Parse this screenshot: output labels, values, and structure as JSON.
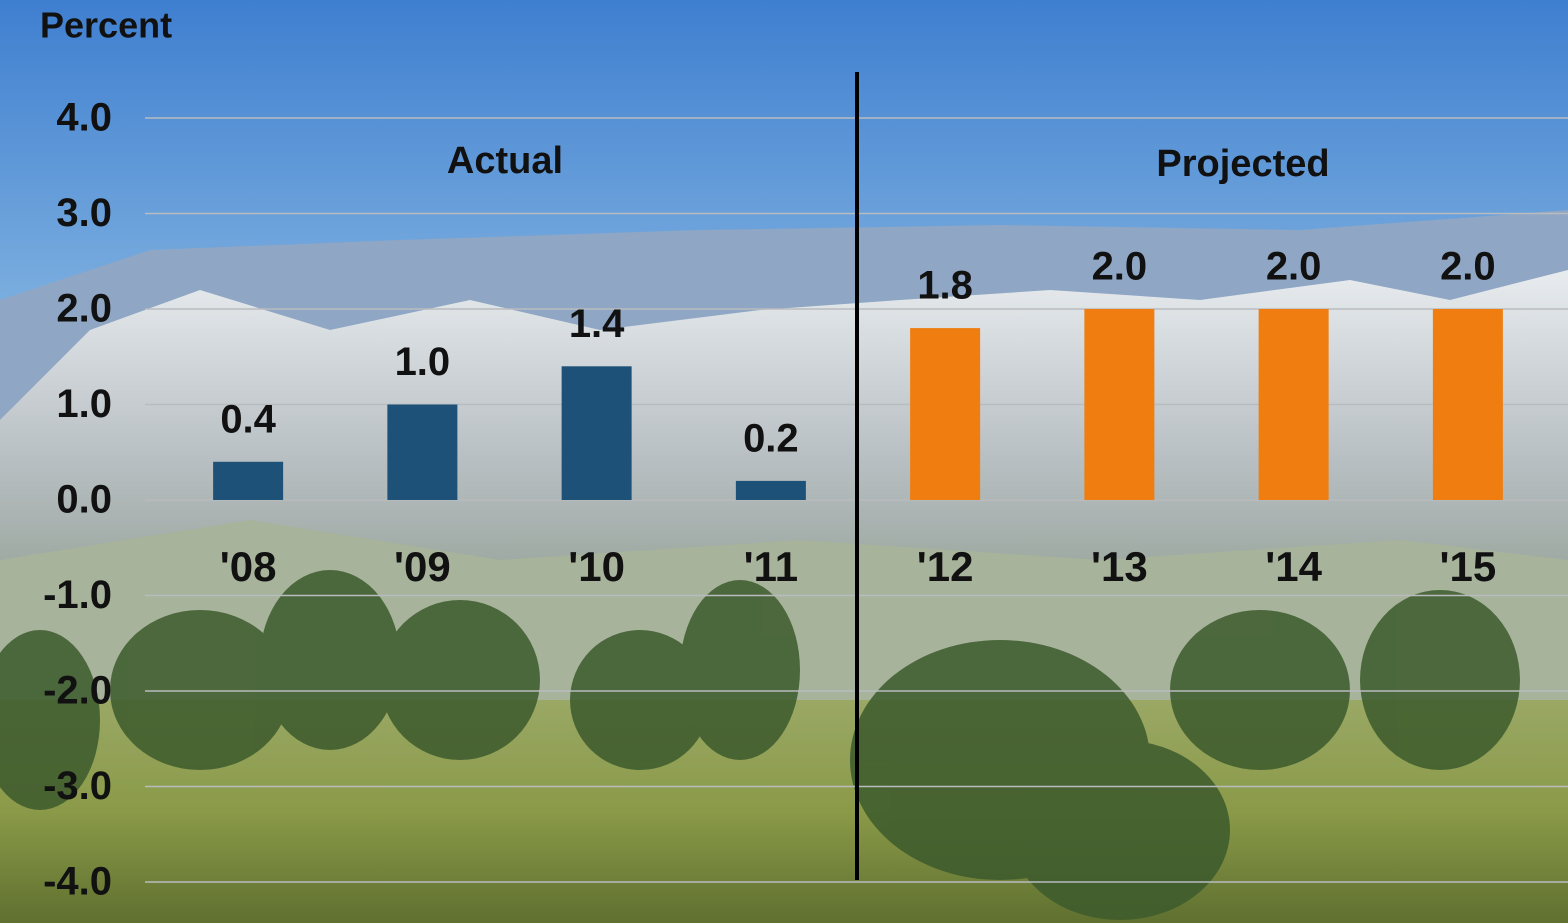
{
  "chart_data": {
    "type": "bar",
    "y_label": "Percent",
    "annotations": [
      "Actual",
      "Projected"
    ],
    "categories": [
      "'08",
      "'09",
      "'10",
      "'11",
      "'12",
      "'13",
      "'14",
      "'15"
    ],
    "values": [
      0.4,
      1.0,
      1.4,
      0.2,
      1.8,
      2.0,
      2.0,
      2.0
    ],
    "value_labels": [
      "0.4",
      "1.0",
      "1.4",
      "0.2",
      "1.8",
      "2.0",
      "2.0",
      "2.0"
    ],
    "colors": [
      "#1d5177",
      "#1d5177",
      "#1d5177",
      "#1d5177",
      "#ef7d10",
      "#ef7d10",
      "#ef7d10",
      "#ef7d10"
    ],
    "ylim": [
      -4,
      4
    ],
    "yticks": [
      {
        "value": -4,
        "label": "-4.0"
      },
      {
        "value": -3,
        "label": "-3.0"
      },
      {
        "value": -2,
        "label": "-2.0"
      },
      {
        "value": -1,
        "label": "-1.0"
      },
      {
        "value": 0,
        "label": "0.0"
      },
      {
        "value": 1,
        "label": "1.0"
      },
      {
        "value": 2,
        "label": "2.0"
      },
      {
        "value": 3,
        "label": "3.0"
      },
      {
        "value": 4,
        "label": "4.0"
      }
    ],
    "grid": true
  }
}
